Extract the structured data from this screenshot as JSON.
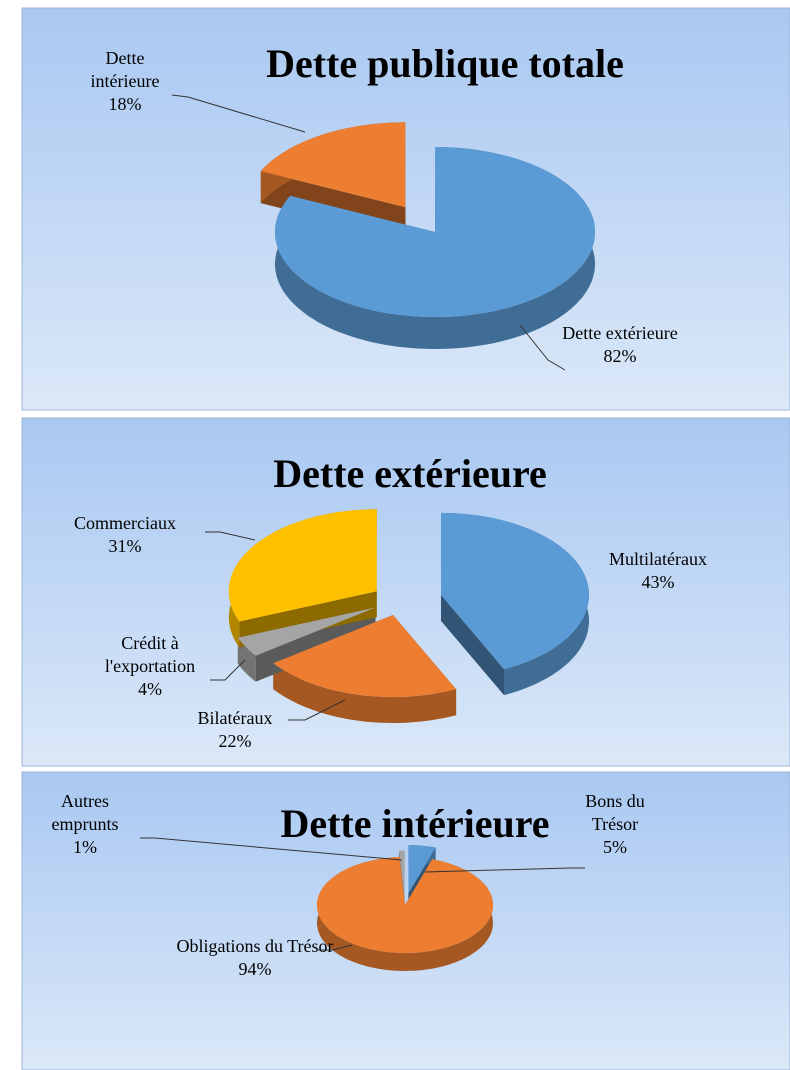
{
  "chart_data": [
    {
      "type": "pie3d",
      "title": "Dette publique totale",
      "categories": [
        "Dette extérieure",
        "Dette intérieure"
      ],
      "values": [
        82,
        18
      ],
      "value_labels": [
        "82%",
        "18%"
      ],
      "colors": [
        "#5b9bd5",
        "#ed7d31"
      ]
    },
    {
      "type": "pie3d",
      "title": "Dette extérieure",
      "categories": [
        "Multilatéraux",
        "Bilatéraux",
        "Crédit à l'exportation",
        "Commerciaux"
      ],
      "values": [
        43,
        22,
        4,
        31
      ],
      "value_labels": [
        "43%",
        "22%",
        "4%",
        "31%"
      ],
      "colors": [
        "#5b9bd5",
        "#ed7d31",
        "#a5a5a5",
        "#ffc000"
      ]
    },
    {
      "type": "pie3d",
      "title": "Dette intérieure",
      "categories": [
        "Bons du Trésor",
        "Obligations du Trésor",
        "Autres emprunts"
      ],
      "values": [
        5,
        94,
        1
      ],
      "value_labels": [
        "5%",
        "94%",
        "1%"
      ],
      "colors": [
        "#5b9bd5",
        "#ed7d31",
        "#a5a5a5"
      ]
    }
  ]
}
